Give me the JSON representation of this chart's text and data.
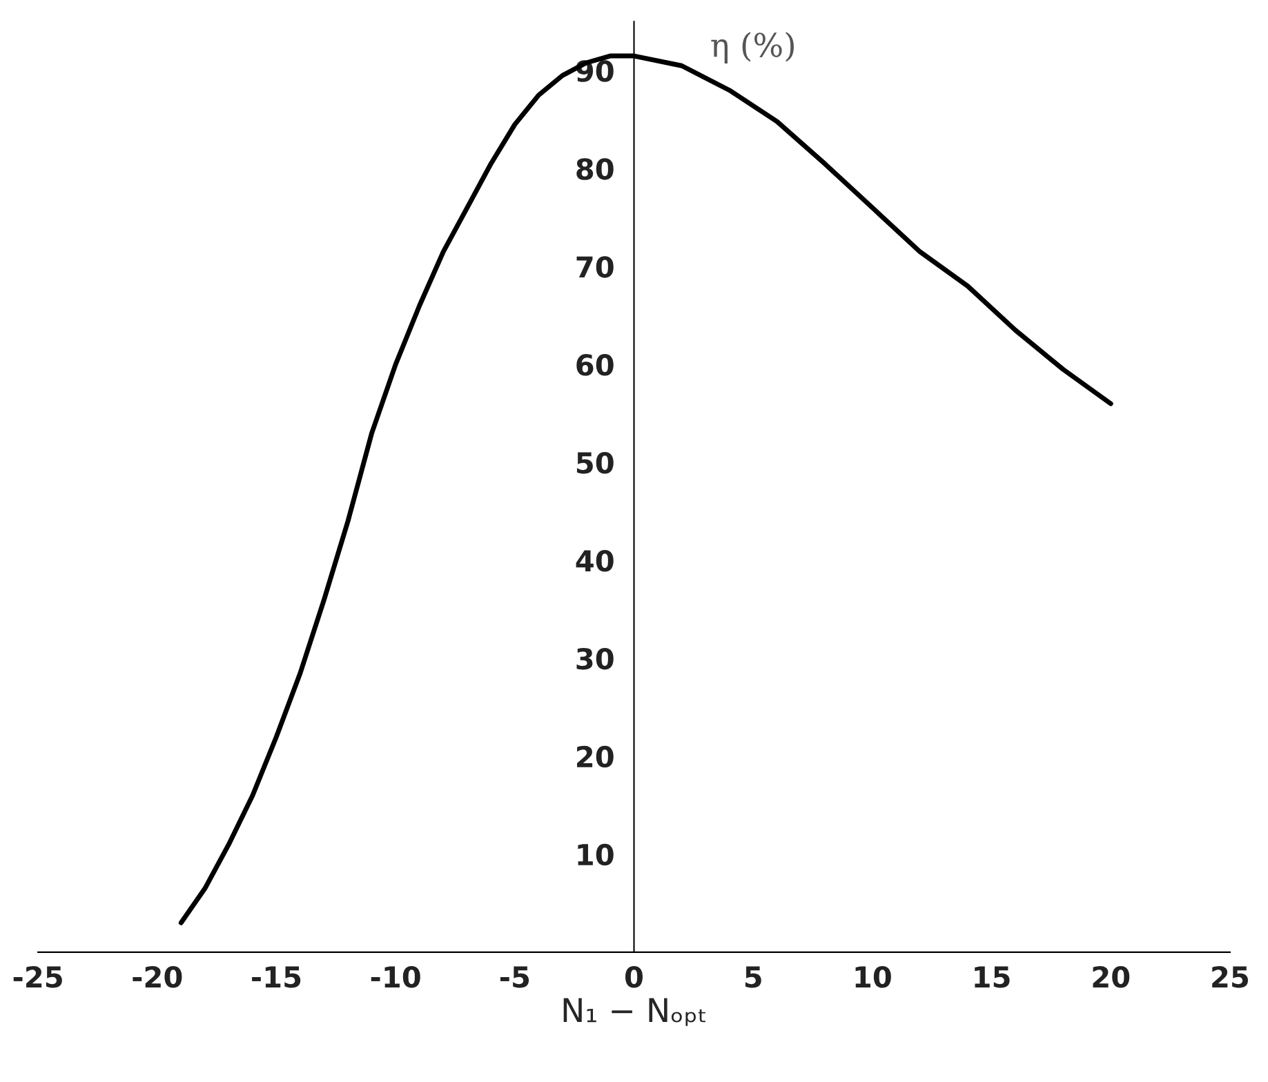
{
  "chart_data": {
    "type": "line",
    "xlabel": "N₁ − Nₒₚₜ",
    "ylabel": "η (%)",
    "x": [
      -19,
      -18,
      -17,
      -16,
      -15,
      -14,
      -13,
      -12,
      -11,
      -10,
      -9,
      -8,
      -7,
      -6,
      -5,
      -4,
      -3,
      -2,
      -1,
      0,
      2,
      4,
      6,
      8,
      10,
      12,
      14,
      16,
      18,
      20
    ],
    "series": [
      {
        "color": "#000000",
        "values": [
          3,
          6.5,
          11,
          16,
          22,
          28.5,
          36,
          44,
          53,
          60,
          66,
          71.5,
          76,
          80.5,
          84.5,
          87.5,
          89.5,
          90.8,
          91.5,
          91.5,
          90.5,
          88,
          84.8,
          80.5,
          76,
          71.5,
          68,
          63.5,
          59.5,
          56
        ]
      }
    ],
    "xlim": [
      -25,
      25
    ],
    "ylim": [
      0,
      95
    ],
    "xticks": [
      -25,
      -20,
      -15,
      -10,
      -5,
      0,
      5,
      10,
      15,
      20,
      25
    ],
    "yticks": [
      10,
      20,
      30,
      40,
      50,
      60,
      70,
      80,
      90
    ],
    "grid": false,
    "legend": false,
    "marker": "none",
    "line_style": "solid"
  }
}
